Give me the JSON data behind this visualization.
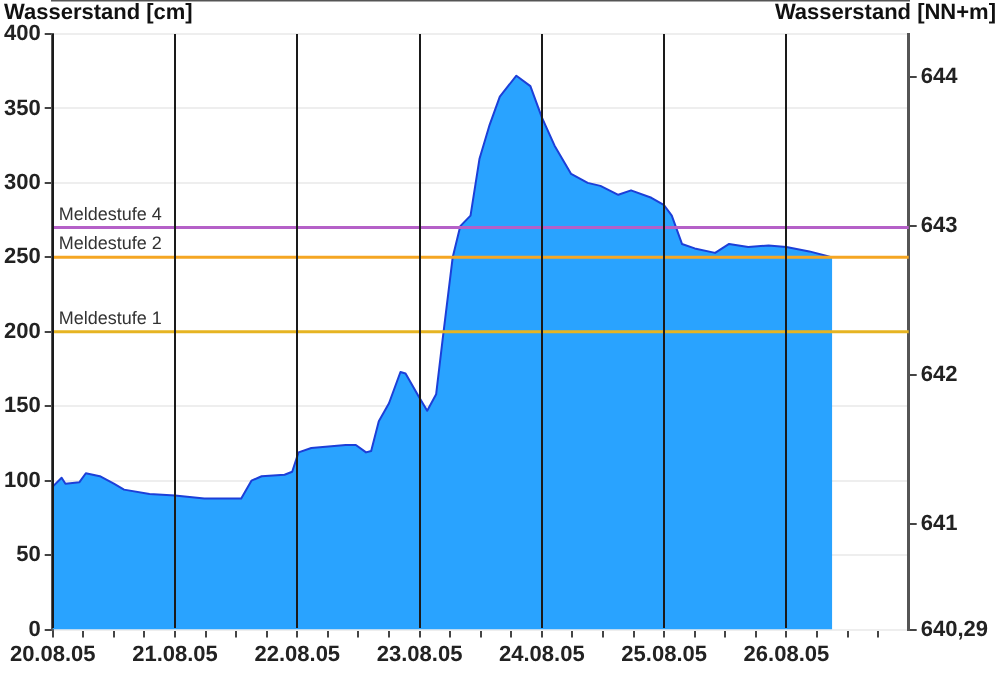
{
  "chart_data": {
    "type": "area",
    "ylabel": "Wasserstand [cm]",
    "y2label": "Wasserstand [NN+m]",
    "x": [
      "--08-20T00:00",
      "--08-20T01:45",
      "--08-20T02:30",
      "--08-20T05:15",
      "--08-20T06:30",
      "--08-20T09:15",
      "--08-20T12:00",
      "--08-20T14:00",
      "--08-20T19:00",
      "--08-21T00:00",
      "--08-21T05:45",
      "--08-21T13:00",
      "--08-21T15:00",
      "--08-21T17:00",
      "--08-21T21:30",
      "--08-21T23:00",
      "--08-22T00:15",
      "--08-22T02:45",
      "--08-22T09:30",
      "--08-22T11:30",
      "--08-22T13:30",
      "--08-22T14:30",
      "--08-22T16:00",
      "--08-22T18:00",
      "--08-22T20:15",
      "--08-22T21:15",
      "--08-22T23:45",
      "--08-23T01:30",
      "--08-23T03:15",
      "--08-23T04:30",
      "--08-23T06:30",
      "--08-23T08:00",
      "--08-23T10:00",
      "--08-23T11:45",
      "--08-23T13:45",
      "--08-23T15:45",
      "--08-23T19:00",
      "--08-23T21:45",
      "--08-24T00:00",
      "--08-24T02:30",
      "--08-24T05:45",
      "--08-24T09:00",
      "--08-24T11:30",
      "--08-24T15:00",
      "--08-24T17:30",
      "--08-24T21:30",
      "--08-25T00:00",
      "--08-25T01:30",
      "--08-25T03:30",
      "--08-25T06:00",
      "--08-25T10:00",
      "--08-25T12:45",
      "--08-25T16:30",
      "--08-25T20:30",
      "--08-26T00:00",
      "--08-26T04:30",
      "--08-26T09:00"
    ],
    "series": [
      {
        "color": "#29a3ff",
        "values": [
          96,
          102,
          98,
          99,
          105,
          103,
          98,
          94,
          91,
          90,
          88,
          88,
          100,
          103,
          104,
          106,
          119,
          122,
          124,
          124,
          119,
          120,
          140,
          152,
          173,
          172,
          157,
          147,
          158,
          194,
          250,
          271,
          278,
          316,
          339,
          358,
          372,
          365,
          344,
          325,
          306,
          300,
          298,
          292,
          295,
          290,
          285,
          278,
          259,
          256,
          253,
          259,
          257,
          258,
          257,
          254,
          250
        ]
      }
    ],
    "xlim": [
      "--08-20",
      "--08-27"
    ],
    "xticks": [
      {
        "value": "--08-20",
        "label": "20.08.05"
      },
      {
        "value": "--08-20T06:00",
        "label": null
      },
      {
        "value": "--08-20T12:00",
        "label": null
      },
      {
        "value": "--08-20T18:00",
        "label": null
      },
      {
        "value": "--08-21",
        "label": "21.08.05"
      },
      {
        "value": "--08-21T06:00",
        "label": null
      },
      {
        "value": "--08-21T12:00",
        "label": null
      },
      {
        "value": "--08-21T18:00",
        "label": null
      },
      {
        "value": "--08-22",
        "label": "22.08.05"
      },
      {
        "value": "--08-22T06:00",
        "label": null
      },
      {
        "value": "--08-22T12:00",
        "label": null
      },
      {
        "value": "--08-22T18:00",
        "label": null
      },
      {
        "value": "--08-23",
        "label": "23.08.05"
      },
      {
        "value": "--08-23T06:00",
        "label": null
      },
      {
        "value": "--08-23T12:00",
        "label": null
      },
      {
        "value": "--08-23T18:00",
        "label": null
      },
      {
        "value": "--08-24",
        "label": "24.08.05"
      },
      {
        "value": "--08-24T06:00",
        "label": null
      },
      {
        "value": "--08-24T12:00",
        "label": null
      },
      {
        "value": "--08-24T18:00",
        "label": null
      },
      {
        "value": "--08-25",
        "label": "25.08.05"
      },
      {
        "value": "--08-25T06:00",
        "label": null
      },
      {
        "value": "--08-25T12:00",
        "label": null
      },
      {
        "value": "--08-25T18:00",
        "label": null
      },
      {
        "value": "--08-26",
        "label": "26.08.05"
      },
      {
        "value": "--08-26T06:00",
        "label": null
      },
      {
        "value": "--08-26T12:00",
        "label": null
      },
      {
        "value": "--08-26T18:00",
        "label": null
      }
    ],
    "ylim": [
      0,
      400
    ],
    "yticks": [
      0,
      50,
      100,
      150,
      200,
      250,
      300,
      350,
      400
    ],
    "y2lim": [
      640.29,
      644.29
    ],
    "y2ticks": [
      {
        "value": 640.29,
        "label": "640,29"
      },
      641,
      642,
      643,
      644
    ],
    "ref_lines": [
      {
        "axis": "y",
        "value": 270,
        "label": "Meldestufe 4",
        "color": "#b560c8"
      },
      {
        "axis": "y",
        "value": 250,
        "label": "Meldestufe 2",
        "color": "#f5a623"
      },
      {
        "axis": "y",
        "value": 200,
        "label": "Meldestufe 1",
        "color": "#e6b422"
      }
    ],
    "grid": true
  }
}
